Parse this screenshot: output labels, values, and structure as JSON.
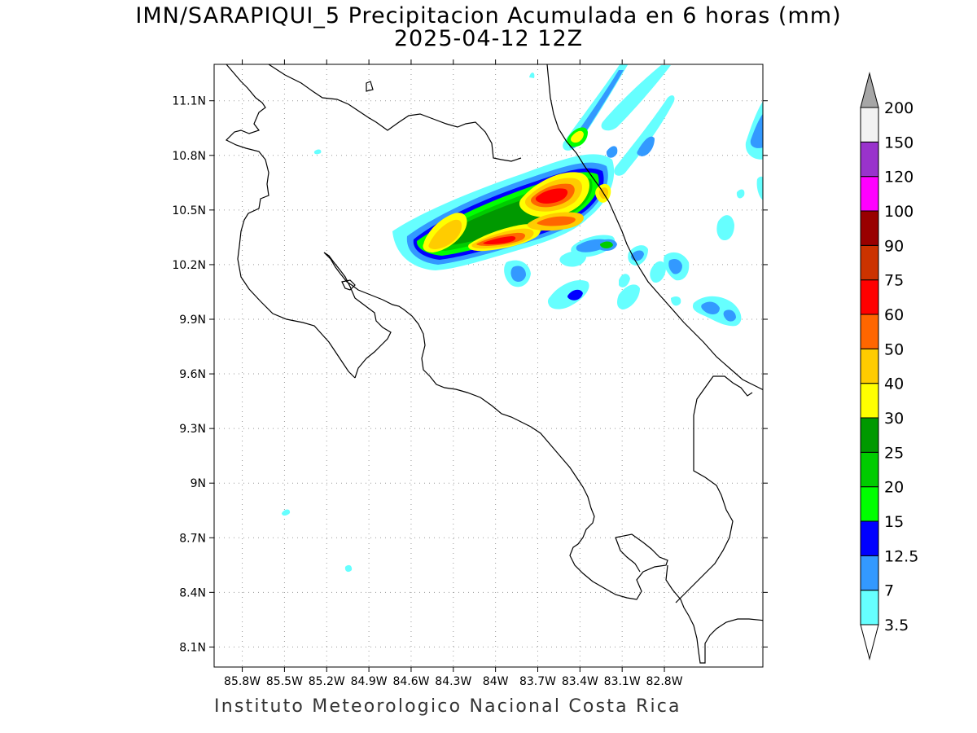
{
  "title": {
    "line1": "IMN/SARAPIQUI_5 Precipitacion Acumulada en 6 horas (mm)",
    "line2": "2025-04-12 12Z"
  },
  "footer": "Instituto Meteorologico Nacional Costa Rica",
  "map": {
    "lon_range": [
      -86.0,
      -82.1
    ],
    "lat_range": [
      7.99,
      11.3
    ],
    "lon_ticks": [
      {
        "value": -85.8,
        "label": "85.8W"
      },
      {
        "value": -85.5,
        "label": "85.5W"
      },
      {
        "value": -85.2,
        "label": "85.2W"
      },
      {
        "value": -84.9,
        "label": "84.9W"
      },
      {
        "value": -84.6,
        "label": "84.6W"
      },
      {
        "value": -84.3,
        "label": "84.3W"
      },
      {
        "value": -84.0,
        "label": "84W"
      },
      {
        "value": -83.7,
        "label": "83.7W"
      },
      {
        "value": -83.4,
        "label": "83.4W"
      },
      {
        "value": -83.1,
        "label": "83.1W"
      },
      {
        "value": -82.8,
        "label": "82.8W"
      }
    ],
    "lat_ticks": [
      {
        "value": 11.1,
        "label": "11.1N"
      },
      {
        "value": 10.8,
        "label": "10.8N"
      },
      {
        "value": 10.5,
        "label": "10.5N"
      },
      {
        "value": 10.2,
        "label": "10.2N"
      },
      {
        "value": 9.9,
        "label": "9.9N"
      },
      {
        "value": 9.6,
        "label": "9.6N"
      },
      {
        "value": 9.3,
        "label": "9.3N"
      },
      {
        "value": 9.0,
        "label": "9N"
      },
      {
        "value": 8.7,
        "label": "8.7N"
      },
      {
        "value": 8.4,
        "label": "8.4N"
      },
      {
        "value": 8.1,
        "label": "8.1N"
      }
    ],
    "grid": true
  },
  "colorbar": {
    "levels": [
      {
        "label": "3.5",
        "color": "#66ffff"
      },
      {
        "label": "7",
        "color": "#3399ff"
      },
      {
        "label": "12.5",
        "color": "#0000ff"
      },
      {
        "label": "15",
        "color": "#00ff00"
      },
      {
        "label": "20",
        "color": "#00cc00"
      },
      {
        "label": "25",
        "color": "#009900"
      },
      {
        "label": "30",
        "color": "#ffff00"
      },
      {
        "label": "40",
        "color": "#ffcc00"
      },
      {
        "label": "50",
        "color": "#ff6600"
      },
      {
        "label": "60",
        "color": "#ff0000"
      },
      {
        "label": "75",
        "color": "#cc3300"
      },
      {
        "label": "90",
        "color": "#990000"
      },
      {
        "label": "100",
        "color": "#ff00ff"
      },
      {
        "label": "120",
        "color": "#9933cc"
      },
      {
        "label": "150",
        "color": "#f2f2f2"
      },
      {
        "label": "200",
        "color": ""
      }
    ],
    "top_arrow_color": "#a6a6a6",
    "bottom_arrow_color": "#ffffff"
  }
}
